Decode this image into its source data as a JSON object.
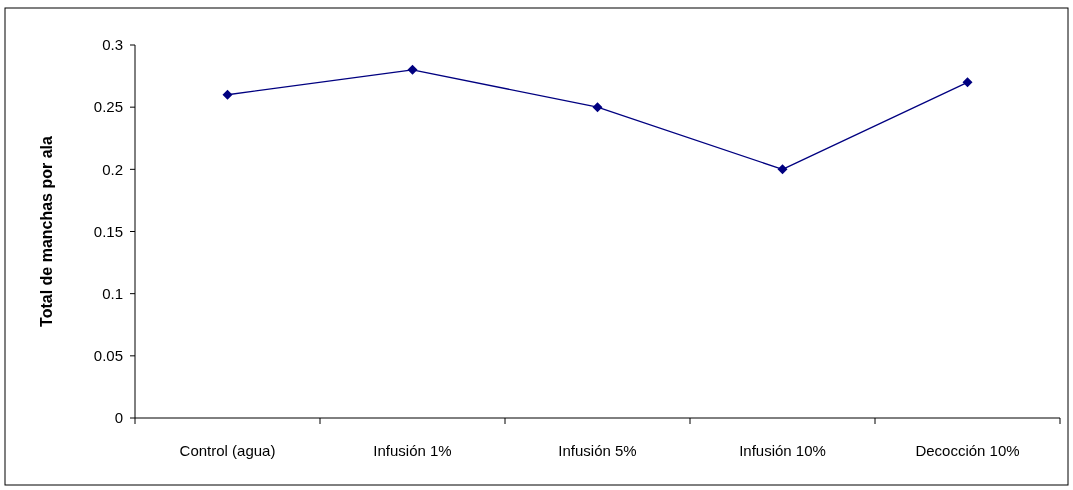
{
  "chart_data": {
    "type": "line",
    "ylabel": "Total de manchas por ala",
    "categories": [
      "Control (agua)",
      "Infusión 1%",
      "Infusión 5%",
      "Infusión 10%",
      "Decocción 10%"
    ],
    "series": [
      {
        "color": "#000080",
        "values": [
          0.26,
          0.28,
          0.25,
          0.2,
          0.27
        ]
      }
    ],
    "ylim": [
      0,
      0.3
    ],
    "yticks": [
      0,
      0.05,
      0.1,
      0.15,
      0.2,
      0.25,
      0.3
    ],
    "marker": "diamond",
    "line_style": "solid"
  }
}
